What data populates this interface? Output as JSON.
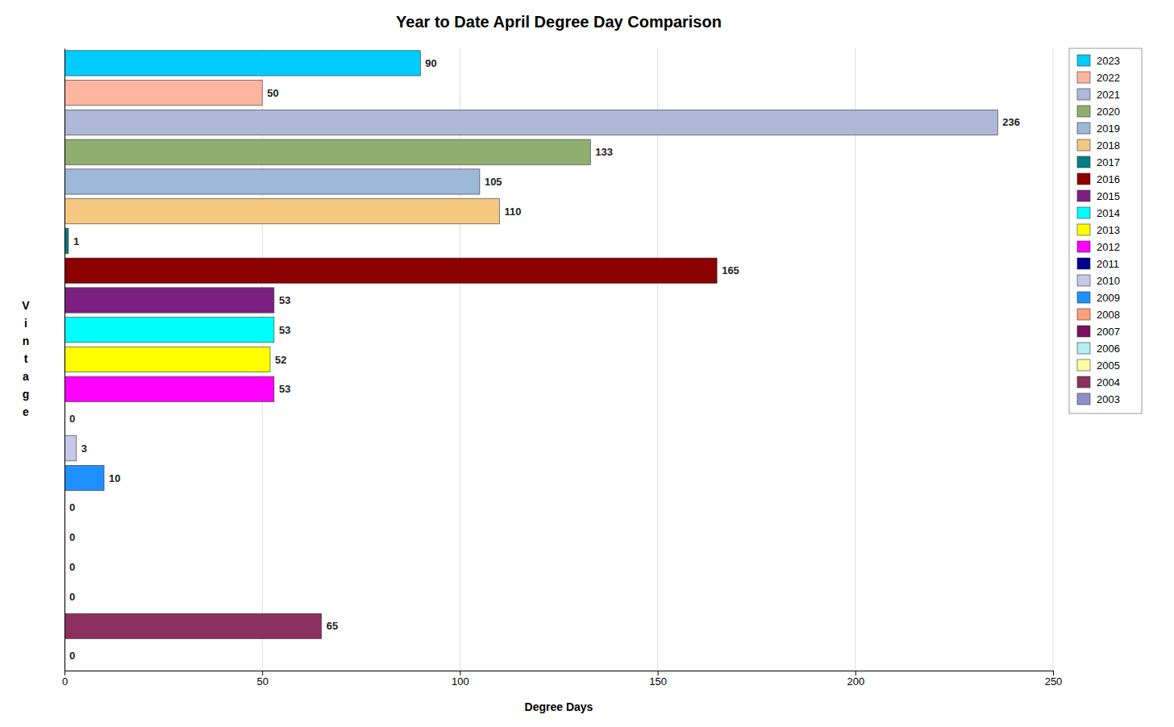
{
  "chart_data": {
    "type": "bar",
    "orientation": "horizontal",
    "title": "Year to Date April Degree Day Comparison",
    "xlabel": "Degree Days",
    "ylabel": "Vintage",
    "categories": [
      "2023",
      "2022",
      "2021",
      "2020",
      "2019",
      "2018",
      "2017",
      "2016",
      "2015",
      "2014",
      "2013",
      "2012",
      "2011",
      "2010",
      "2009",
      "2008",
      "2007",
      "2006",
      "2005",
      "2004",
      "2003"
    ],
    "values": [
      90,
      50,
      236,
      133,
      105,
      110,
      1,
      165,
      53,
      53,
      52,
      53,
      0,
      3,
      10,
      0,
      0,
      0,
      0,
      65,
      0
    ],
    "colors": [
      "#00CCFF",
      "#FFB6A0",
      "#B0B8D8",
      "#8FAF70",
      "#9DB8D8",
      "#F5C882",
      "#008080",
      "#8B0000",
      "#7B2080",
      "#00FFFF",
      "#FFFF00",
      "#FF00FF",
      "#000090",
      "#C8C8E8",
      "#1E90FF",
      "#FFA07A",
      "#7B1060",
      "#B0F0F0",
      "#FFFFA0",
      "#8B3060",
      "#9090C8"
    ],
    "xlim": [
      0,
      250
    ],
    "xticks": [
      0,
      50,
      100,
      150,
      200,
      250
    ],
    "grid": true,
    "legend": "right",
    "data_labels": true,
    "tick_labels": "x"
  }
}
